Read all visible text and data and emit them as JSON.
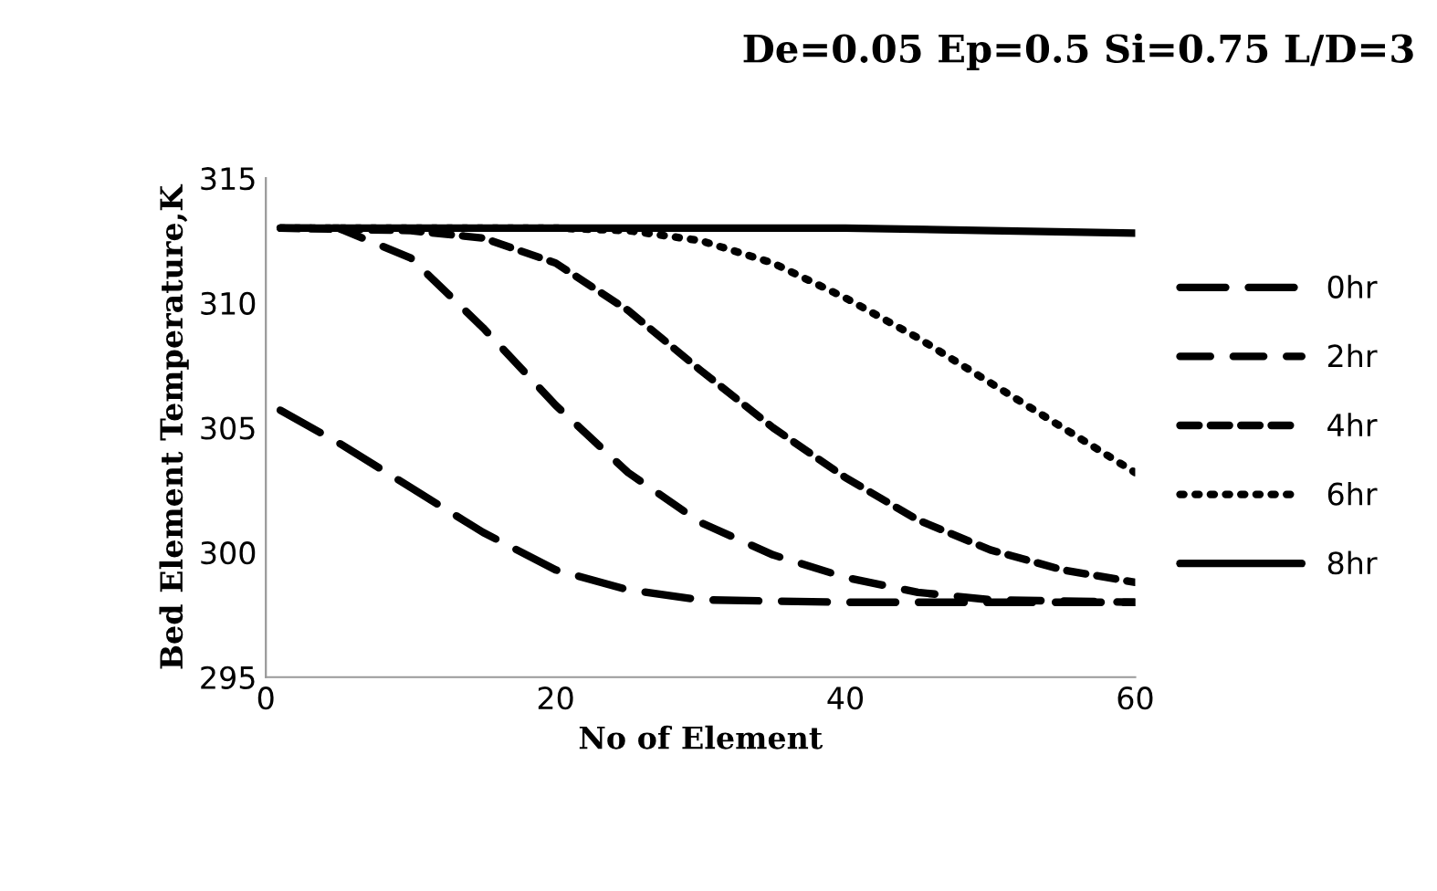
{
  "chart_data": {
    "type": "line",
    "title": "De=0.05 Ep=0.5 Si=0.75 L/D=3",
    "xlabel": "No of Element",
    "ylabel": "Bed Element Temperature,K",
    "xlim": [
      0,
      60
    ],
    "xticks": [
      0,
      20,
      40,
      60
    ],
    "ylim": [
      295,
      315
    ],
    "yticks": [
      295,
      300,
      305,
      310,
      315
    ],
    "grid": false,
    "legend": "right",
    "marker": "none",
    "series": [
      {
        "name": "0hr",
        "color": "#000000",
        "line_style": "dashed",
        "x": [
          1,
          5,
          10,
          15,
          20,
          25,
          30,
          40,
          50,
          60
        ],
        "values": [
          305.7,
          304.4,
          302.6,
          300.8,
          299.3,
          298.5,
          298.1,
          298.0,
          298.0,
          298.0
        ]
      },
      {
        "name": "2hr",
        "color": "#000000",
        "line_style": "dashed",
        "x": [
          1,
          5,
          10,
          15,
          20,
          25,
          30,
          35,
          40,
          45,
          50,
          60
        ],
        "values": [
          313.0,
          313.0,
          311.8,
          309.0,
          305.9,
          303.2,
          301.2,
          299.9,
          299.0,
          298.4,
          298.1,
          298.0
        ]
      },
      {
        "name": "4hr",
        "color": "#000000",
        "line_style": "dashed",
        "x": [
          1,
          10,
          15,
          20,
          25,
          30,
          35,
          40,
          45,
          50,
          55,
          60
        ],
        "values": [
          313.0,
          312.9,
          312.6,
          311.6,
          309.7,
          307.3,
          305.0,
          303.0,
          301.3,
          300.1,
          299.3,
          298.8
        ]
      },
      {
        "name": "6hr",
        "color": "#000000",
        "line_style": "dotted",
        "x": [
          1,
          20,
          25,
          30,
          35,
          40,
          45,
          50,
          55,
          60
        ],
        "values": [
          313.0,
          313.0,
          312.9,
          312.5,
          311.6,
          310.2,
          308.6,
          306.8,
          305.0,
          303.2
        ]
      },
      {
        "name": "8hr",
        "color": "#000000",
        "line_style": "solid",
        "x": [
          1,
          40,
          50,
          60
        ],
        "values": [
          313.0,
          313.0,
          312.9,
          312.8
        ]
      }
    ]
  }
}
